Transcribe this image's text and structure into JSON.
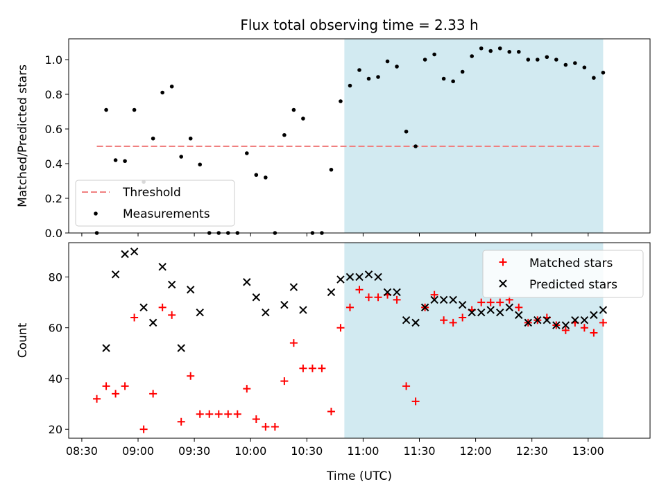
{
  "chart_data": [
    {
      "type": "scatter",
      "title": "Flux total observing time = 2.33 h",
      "xlabel": "",
      "ylabel": "Matched/Predicted stars",
      "ylim": [
        0,
        1.12
      ],
      "yticks": [
        "0.0",
        "0.2",
        "0.4",
        "0.6",
        "0.8",
        "1.0"
      ],
      "grid": false,
      "legend_position": "lower-left",
      "shaded_span": {
        "from": "10:50",
        "to": "13:08",
        "color": "#add8e6"
      },
      "threshold": {
        "name": "Threshold",
        "value": 0.5,
        "from": "08:38",
        "to": "13:07",
        "color": "#f08080"
      },
      "series": [
        {
          "name": "Measurements",
          "marker": "dot",
          "color": "#000000",
          "x": [
            "08:38",
            "08:43",
            "08:48",
            "08:53",
            "08:58",
            "09:03",
            "09:08",
            "09:13",
            "09:18",
            "09:23",
            "09:28",
            "09:33",
            "09:38",
            "09:43",
            "09:48",
            "09:53",
            "09:58",
            "10:03",
            "10:08",
            "10:13",
            "10:18",
            "10:23",
            "10:28",
            "10:33",
            "10:38",
            "10:43",
            "10:48",
            "10:53",
            "10:58",
            "11:03",
            "11:08",
            "11:13",
            "11:18",
            "11:23",
            "11:28",
            "11:33",
            "11:38",
            "11:43",
            "11:48",
            "11:53",
            "11:58",
            "12:03",
            "12:08",
            "12:13",
            "12:18",
            "12:23",
            "12:28",
            "12:33",
            "12:38",
            "12:43",
            "12:48",
            "12:53",
            "12:58",
            "13:03",
            "13:08"
          ],
          "y": [
            0.0,
            0.71,
            0.42,
            0.415,
            0.71,
            0.295,
            0.545,
            0.81,
            0.845,
            0.44,
            0.545,
            0.395,
            0.0,
            0.0,
            0.0,
            0.0,
            0.46,
            0.335,
            0.32,
            0.0,
            0.565,
            0.71,
            0.66,
            0.0,
            0.0,
            0.365,
            0.76,
            0.85,
            0.94,
            0.89,
            0.9,
            0.99,
            0.96,
            0.585,
            0.5,
            1.0,
            1.03,
            0.89,
            0.875,
            0.93,
            1.02,
            1.065,
            1.05,
            1.065,
            1.045,
            1.045,
            1.0,
            1.0,
            1.015,
            1.0,
            0.97,
            0.98,
            0.955,
            0.895,
            0.925
          ]
        }
      ]
    },
    {
      "type": "scatter",
      "xlabel": "Time (UTC)",
      "ylabel": "Count",
      "ylim": [
        16.5,
        93.5
      ],
      "yticks": [
        "20",
        "40",
        "60",
        "80"
      ],
      "xticks": [
        "08:30",
        "09:00",
        "09:30",
        "10:00",
        "10:30",
        "11:00",
        "11:30",
        "12:00",
        "12:30",
        "13:00"
      ],
      "grid": false,
      "legend_position": "upper-right",
      "shaded_span": {
        "from": "10:50",
        "to": "13:08",
        "color": "#add8e6"
      },
      "series": [
        {
          "name": "Matched stars",
          "marker": "plus",
          "color": "#ff0000",
          "x": [
            "08:38",
            "08:43",
            "08:48",
            "08:53",
            "08:58",
            "09:03",
            "09:08",
            "09:13",
            "09:18",
            "09:23",
            "09:28",
            "09:33",
            "09:38",
            "09:43",
            "09:48",
            "09:53",
            "09:58",
            "10:03",
            "10:08",
            "10:13",
            "10:18",
            "10:23",
            "10:28",
            "10:33",
            "10:38",
            "10:43",
            "10:48",
            "10:53",
            "10:58",
            "11:03",
            "11:08",
            "11:13",
            "11:18",
            "11:23",
            "11:28",
            "11:33",
            "11:38",
            "11:43",
            "11:48",
            "11:53",
            "11:58",
            "12:03",
            "12:08",
            "12:13",
            "12:18",
            "12:23",
            "12:28",
            "12:33",
            "12:38",
            "12:43",
            "12:48",
            "12:53",
            "12:58",
            "13:03",
            "13:08"
          ],
          "y": [
            32,
            37,
            34,
            37,
            64,
            20,
            34,
            68,
            65,
            23,
            41,
            26,
            26,
            26,
            26,
            26,
            36,
            24,
            21,
            21,
            39,
            54,
            44,
            44,
            44,
            27,
            60,
            68,
            75,
            72,
            72,
            73,
            71,
            37,
            31,
            68,
            73,
            63,
            62,
            64,
            67,
            70,
            70,
            70,
            71,
            68,
            62,
            63,
            64,
            61,
            59,
            62,
            60,
            58,
            62
          ]
        },
        {
          "name": "Predicted stars",
          "marker": "x",
          "color": "#000000",
          "x": [
            "08:43",
            "08:48",
            "08:53",
            "08:58",
            "09:03",
            "09:08",
            "09:13",
            "09:18",
            "09:23",
            "09:28",
            "09:33",
            "09:58",
            "10:03",
            "10:08",
            "10:18",
            "10:23",
            "10:28",
            "10:43",
            "10:48",
            "10:53",
            "10:58",
            "11:03",
            "11:08",
            "11:13",
            "11:18",
            "11:23",
            "11:28",
            "11:33",
            "11:38",
            "11:43",
            "11:48",
            "11:53",
            "11:58",
            "12:03",
            "12:08",
            "12:13",
            "12:18",
            "12:23",
            "12:28",
            "12:33",
            "12:38",
            "12:43",
            "12:48",
            "12:53",
            "12:58",
            "13:03",
            "13:08"
          ],
          "y": [
            52,
            81,
            89,
            90,
            68,
            62,
            84,
            77,
            52,
            75,
            66,
            78,
            72,
            66,
            69,
            76,
            67,
            74,
            79,
            80,
            80,
            81,
            80,
            74,
            74,
            63,
            62,
            68,
            71,
            71,
            71,
            69,
            66,
            66,
            67,
            66,
            68,
            65,
            62,
            63,
            63,
            61,
            61,
            63,
            63,
            65,
            67
          ]
        }
      ]
    }
  ]
}
